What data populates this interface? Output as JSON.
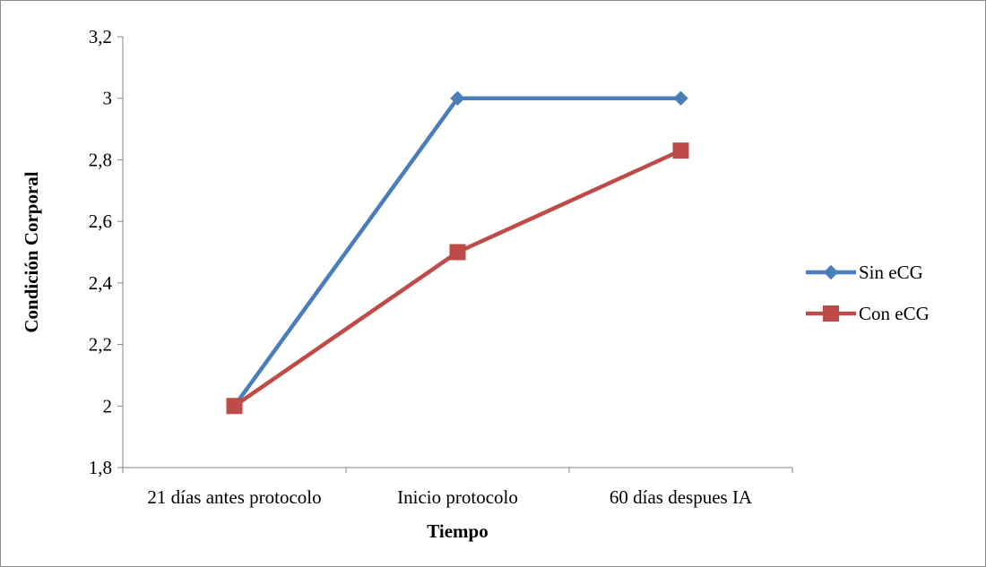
{
  "chart_data": {
    "type": "line",
    "title": "",
    "xlabel": "Tiempo",
    "ylabel": "Condición Corporal",
    "categories": [
      "21 días antes protocolo",
      "Inicio protocolo",
      "60 días despues IA"
    ],
    "ylim": [
      1.8,
      3.2
    ],
    "ystep": 0.2,
    "y_tick_labels": [
      "1,8",
      "2",
      "2,2",
      "2,4",
      "2,6",
      "2,8",
      "3",
      "3,2"
    ],
    "grid": false,
    "legend_position": "right",
    "series": [
      {
        "name": "Sin eCG",
        "values": [
          2.0,
          3.0,
          3.0
        ],
        "color": "#4a7ebb",
        "marker": "diamond"
      },
      {
        "name": "Con eCG",
        "values": [
          2.0,
          2.5,
          2.83
        ],
        "color": "#be4b48",
        "marker": "square"
      }
    ]
  }
}
